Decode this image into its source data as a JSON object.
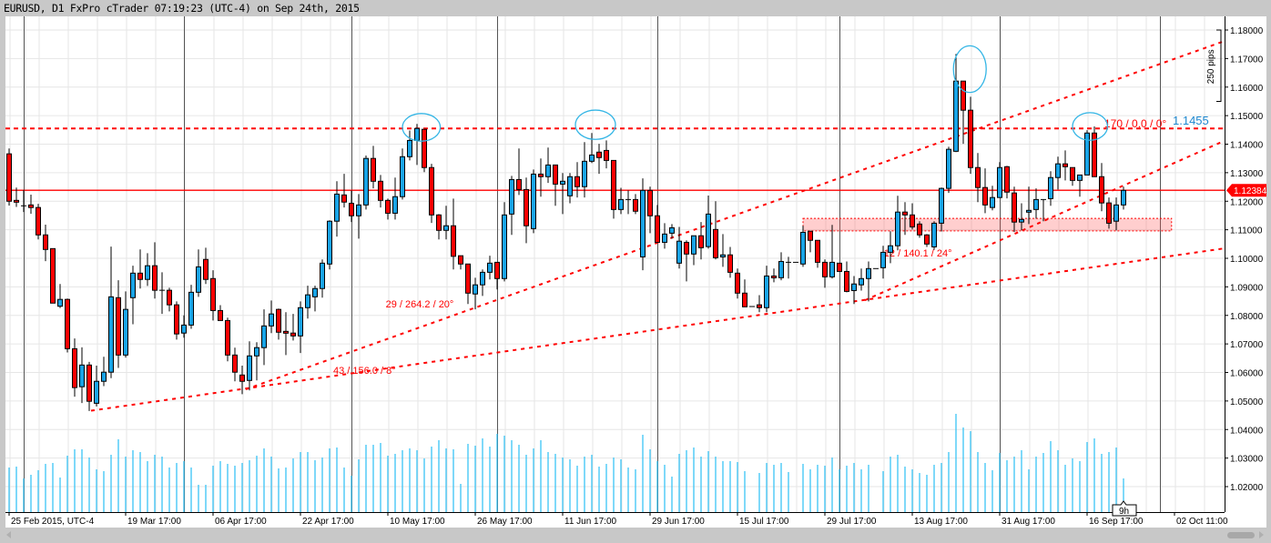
{
  "window": {
    "title": "EURUSD, D1 FxPro cTrader 07:19:23 (UTC-4) on Sep 24th, 2015"
  },
  "colors": {
    "bull": "#19a4e6",
    "bear": "#ff0000",
    "volume": "#29bff5",
    "line": "#ff0000",
    "highlight": "#33b5e5",
    "grid": "#e6e6e6",
    "separator": "#555555"
  },
  "chart_data": {
    "type": "candlestick",
    "symbol": "EURUSD",
    "timeframe": "D1",
    "ylim": [
      1.0115,
      1.1845
    ],
    "y_ticks": [
      1.18,
      1.17,
      1.16,
      1.15,
      1.14,
      1.13,
      1.12,
      1.11,
      1.1,
      1.09,
      1.08,
      1.07,
      1.06,
      1.05,
      1.04,
      1.03,
      1.02
    ],
    "y_tick_labels": [
      "1.18000",
      "1.17000",
      "1.16000",
      "1.15000",
      "1.14000",
      "1.13000",
      "1.12000",
      "1.11000",
      "1.10000",
      "1.09000",
      "1.08000",
      "1.07000",
      "1.06000",
      "1.05000",
      "1.04000",
      "1.03000",
      "1.02000"
    ],
    "x_labels": [
      {
        "label": "25 Feb 2015, UTC-4",
        "index": 0
      },
      {
        "label": "19 Mar 17:00",
        "index": 16
      },
      {
        "label": "06 Apr 17:00",
        "index": 28
      },
      {
        "label": "22 Apr 17:00",
        "index": 40
      },
      {
        "label": "10 May 17:00",
        "index": 52
      },
      {
        "label": "26 May 17:00",
        "index": 64
      },
      {
        "label": "11 Jun 17:00",
        "index": 76
      },
      {
        "label": "29 Jun 17:00",
        "index": 88
      },
      {
        "label": "15 Jul 17:00",
        "index": 100
      },
      {
        "label": "29 Jul 17:00",
        "index": 112
      },
      {
        "label": "13 Aug 17:00",
        "index": 124
      },
      {
        "label": "31 Aug 17:00",
        "index": 136
      },
      {
        "label": "16 Sep 17:00",
        "index": 148
      },
      {
        "label": "02 Oct 11:00",
        "index": 160
      }
    ],
    "period_separators": [
      2,
      24,
      47,
      67,
      89,
      114,
      136,
      158
    ],
    "ohlc_columns": [
      "open",
      "high",
      "low",
      "close"
    ],
    "candles": [
      [
        1.1366,
        1.1385,
        1.1185,
        1.12
      ],
      [
        1.1203,
        1.1248,
        1.118,
        1.1197
      ],
      [
        1.1184,
        1.124,
        1.1162,
        1.1184
      ],
      [
        1.1187,
        1.1223,
        1.1156,
        1.1178
      ],
      [
        1.1178,
        1.1191,
        1.1066,
        1.1082
      ],
      [
        1.1082,
        1.1118,
        1.099,
        1.1031
      ],
      [
        1.1034,
        1.1034,
        1.0843,
        1.0843
      ],
      [
        1.0832,
        1.091,
        1.0826,
        1.0856
      ],
      [
        1.0856,
        1.0859,
        1.067,
        1.0683
      ],
      [
        1.0683,
        1.0719,
        1.0515,
        1.0547
      ],
      [
        1.055,
        1.0688,
        1.0493,
        1.0626
      ],
      [
        1.0626,
        1.0637,
        1.0465,
        1.0499
      ],
      [
        1.0492,
        1.0624,
        1.0481,
        1.0569
      ],
      [
        1.0569,
        1.0655,
        1.0552,
        1.0601
      ],
      [
        1.0601,
        1.1041,
        1.058,
        1.0865
      ],
      [
        1.0862,
        1.0923,
        1.0616,
        1.0661
      ],
      [
        1.0661,
        1.0884,
        1.0652,
        1.0821
      ],
      [
        1.0862,
        1.0974,
        1.0769,
        1.0948
      ],
      [
        1.0948,
        1.1031,
        1.0894,
        1.0926
      ],
      [
        1.0926,
        1.1018,
        1.0903,
        1.0974
      ],
      [
        1.0974,
        1.1056,
        1.0859,
        1.0888
      ],
      [
        1.0888,
        1.0951,
        1.0805,
        1.0888
      ],
      [
        1.0888,
        1.0897,
        1.0814,
        1.0837
      ],
      [
        1.0837,
        1.0849,
        1.0715,
        1.0735
      ],
      [
        1.0738,
        1.08,
        1.0722,
        1.0766
      ],
      [
        1.0766,
        1.0907,
        1.0753,
        1.0881
      ],
      [
        1.0881,
        1.1031,
        1.0865,
        1.097
      ],
      [
        1.0996,
        1.1037,
        1.091,
        1.0926
      ],
      [
        1.0929,
        1.0958,
        1.0782,
        1.0817
      ],
      [
        1.0817,
        1.0836,
        1.0782,
        1.0782
      ],
      [
        1.0782,
        1.0792,
        1.0639,
        1.0661
      ],
      [
        1.0661,
        1.0687,
        1.0569,
        1.0601
      ],
      [
        1.0591,
        1.0624,
        1.0524,
        1.0569
      ],
      [
        1.0572,
        1.0709,
        1.0537,
        1.0658
      ],
      [
        1.0658,
        1.0706,
        1.0572,
        1.0687
      ],
      [
        1.0687,
        1.0821,
        1.0626,
        1.0763
      ],
      [
        1.0763,
        1.0852,
        1.0738,
        1.0805
      ],
      [
        1.0821,
        1.0824,
        1.0715,
        1.0741
      ],
      [
        1.0744,
        1.0811,
        1.0661,
        1.0738
      ],
      [
        1.0738,
        1.0805,
        1.0712,
        1.0728
      ],
      [
        1.0728,
        1.0849,
        1.0668,
        1.0827
      ],
      [
        1.0827,
        1.0904,
        1.0789,
        1.0872
      ],
      [
        1.0865,
        1.0904,
        1.0814,
        1.0894
      ],
      [
        1.0894,
        1.0996,
        1.0862,
        1.0983
      ],
      [
        1.098,
        1.1133,
        1.0961,
        1.113
      ],
      [
        1.113,
        1.127,
        1.1076,
        1.1225
      ],
      [
        1.1222,
        1.1296,
        1.1178,
        1.1197
      ],
      [
        1.1193,
        1.1238,
        1.1127,
        1.1149
      ],
      [
        1.1149,
        1.1225,
        1.1069,
        1.1187
      ],
      [
        1.1187,
        1.136,
        1.1171,
        1.135
      ],
      [
        1.135,
        1.1394,
        1.1245,
        1.127
      ],
      [
        1.127,
        1.1292,
        1.1178,
        1.1203
      ],
      [
        1.1203,
        1.1209,
        1.1136,
        1.1158
      ],
      [
        1.1158,
        1.1283,
        1.1136,
        1.1216
      ],
      [
        1.1216,
        1.1385,
        1.1206,
        1.1356
      ],
      [
        1.1356,
        1.1448,
        1.1343,
        1.1413
      ],
      [
        1.1413,
        1.1471,
        1.1327,
        1.1455
      ],
      [
        1.1452,
        1.1452,
        1.1302,
        1.1318
      ],
      [
        1.1318,
        1.1331,
        1.1124,
        1.1152
      ],
      [
        1.1152,
        1.1155,
        1.1066,
        1.1098
      ],
      [
        1.1098,
        1.1184,
        1.1066,
        1.1114
      ],
      [
        1.1114,
        1.1209,
        1.0961,
        1.1007
      ],
      [
        1.1009,
        1.1009,
        1.0961,
        1.098
      ],
      [
        1.098,
        1.098,
        1.084,
        1.0878
      ],
      [
        1.0875,
        1.0932,
        1.0821,
        1.0907
      ],
      [
        1.0907,
        1.0961,
        1.0868,
        1.0951
      ],
      [
        1.0951,
        1.1009,
        1.0926,
        1.0983
      ],
      [
        1.0986,
        1.0986,
        1.0891,
        1.0929
      ],
      [
        1.0929,
        1.1197,
        1.0919,
        1.1152
      ],
      [
        1.1155,
        1.1289,
        1.1082,
        1.1276
      ],
      [
        1.1276,
        1.1385,
        1.1222,
        1.1241
      ],
      [
        1.1241,
        1.1283,
        1.1053,
        1.1114
      ],
      [
        1.1104,
        1.1311,
        1.1088,
        1.1295
      ],
      [
        1.1295,
        1.135,
        1.1216,
        1.1286
      ],
      [
        1.1286,
        1.1388,
        1.1264,
        1.1327
      ],
      [
        1.1327,
        1.1327,
        1.1184,
        1.126
      ],
      [
        1.126,
        1.1299,
        1.1155,
        1.127
      ],
      [
        1.1219,
        1.1299,
        1.1193,
        1.1286
      ],
      [
        1.1286,
        1.1337,
        1.1213,
        1.1251
      ],
      [
        1.1251,
        1.1407,
        1.1213,
        1.134
      ],
      [
        1.134,
        1.1439,
        1.1334,
        1.1362
      ],
      [
        1.1372,
        1.1401,
        1.1296,
        1.1353
      ],
      [
        1.1378,
        1.1413,
        1.1315,
        1.1343
      ],
      [
        1.1343,
        1.1343,
        1.1139,
        1.1171
      ],
      [
        1.1171,
        1.1247,
        1.1155,
        1.1206
      ],
      [
        1.1206,
        1.1238,
        1.1155,
        1.1206
      ],
      [
        1.1206,
        1.1225,
        1.1155,
        1.1165
      ],
      [
        1.1005,
        1.128,
        1.0958,
        1.1238
      ],
      [
        1.1238,
        1.1251,
        1.1088,
        1.1149
      ],
      [
        1.1149,
        1.1187,
        1.1056,
        1.1056
      ],
      [
        1.1056,
        1.1123,
        1.1034,
        1.1085
      ],
      [
        1.1088,
        1.112,
        1.1069,
        1.1107
      ],
      [
        1.0983,
        1.111,
        1.0964,
        1.106
      ],
      [
        1.1056,
        1.1063,
        1.0919,
        1.1015
      ],
      [
        1.1015,
        1.1079,
        1.0976,
        1.1079
      ],
      [
        1.1079,
        1.1127,
        1.0996,
        1.1037
      ],
      [
        1.1041,
        1.122,
        1.1034,
        1.1155
      ],
      [
        1.1101,
        1.12,
        1.0996,
        1.1002
      ],
      [
        1.1005,
        1.1085,
        1.097,
        1.1012
      ],
      [
        1.1012,
        1.104,
        1.0932,
        1.0951
      ],
      [
        1.0948,
        1.0964,
        1.0859,
        1.0878
      ],
      [
        1.0878,
        1.0926,
        1.083,
        1.083
      ],
      [
        1.0831,
        1.0831,
        1.0831,
        1.0831
      ],
      [
        1.0837,
        1.0871,
        1.0811,
        1.0827
      ],
      [
        1.0827,
        1.0974,
        1.0811,
        1.0938
      ],
      [
        1.0938,
        1.0964,
        1.0916,
        1.0932
      ],
      [
        1.0932,
        1.1021,
        1.0923,
        1.0989
      ],
      [
        1.0986,
        1.1005,
        1.0929,
        1.0986
      ],
      [
        1.0986,
        1.0986,
        1.0986,
        1.0986
      ],
      [
        1.098,
        1.1114,
        1.097,
        1.1091
      ],
      [
        1.1095,
        1.1095,
        1.1021,
        1.1063
      ],
      [
        1.1063,
        1.1063,
        1.0967,
        1.0986
      ],
      [
        1.0986,
        1.0996,
        1.0897,
        1.0935
      ],
      [
        1.0935,
        1.1117,
        1.0929,
        1.0986
      ],
      [
        1.0983,
        1.0983,
        1.0954,
        1.0954
      ],
      [
        1.0954,
        1.0989,
        1.0881,
        1.0884
      ],
      [
        1.0887,
        1.0938,
        1.084,
        1.091
      ],
      [
        1.0907,
        1.0964,
        1.0887,
        1.0929
      ],
      [
        1.0929,
        1.0989,
        1.0849,
        1.0964
      ],
      [
        1.0964,
        1.0964,
        1.0964,
        1.0964
      ],
      [
        1.0967,
        1.1044,
        1.0929,
        1.1021
      ],
      [
        1.1021,
        1.1095,
        1.0983,
        1.1044
      ],
      [
        1.1044,
        1.1219,
        1.1028,
        1.1162
      ],
      [
        1.1162,
        1.1197,
        1.1082,
        1.1152
      ],
      [
        1.1152,
        1.1193,
        1.1101,
        1.111
      ],
      [
        1.112,
        1.113,
        1.1072,
        1.1082
      ],
      [
        1.1082,
        1.1085,
        1.104,
        1.105
      ],
      [
        1.104,
        1.113,
        1.103,
        1.1123
      ],
      [
        1.1123,
        1.1248,
        1.1094,
        1.1245
      ],
      [
        1.1245,
        1.1391,
        1.1229,
        1.1382
      ],
      [
        1.1375,
        1.1716,
        1.1372,
        1.1621
      ],
      [
        1.1621,
        1.1621,
        1.1401,
        1.1519
      ],
      [
        1.1519,
        1.1566,
        1.1296,
        1.1318
      ],
      [
        1.1318,
        1.1369,
        1.1197,
        1.1248
      ],
      [
        1.1248,
        1.1315,
        1.1158,
        1.1187
      ],
      [
        1.1178,
        1.1254,
        1.1168,
        1.1213
      ],
      [
        1.1213,
        1.1337,
        1.1213,
        1.1318
      ],
      [
        1.1321,
        1.1324,
        1.121,
        1.1232
      ],
      [
        1.1229,
        1.1251,
        1.1092,
        1.1127
      ],
      [
        1.1127,
        1.1193,
        1.1098,
        1.1136
      ],
      [
        1.1162,
        1.1251,
        1.112,
        1.1168
      ],
      [
        1.1171,
        1.1245,
        1.1139,
        1.1206
      ],
      [
        1.1206,
        1.1206,
        1.113,
        1.1206
      ],
      [
        1.1209,
        1.1305,
        1.1184,
        1.1283
      ],
      [
        1.1283,
        1.1356,
        1.1241,
        1.1331
      ],
      [
        1.1331,
        1.1378,
        1.1273,
        1.1321
      ],
      [
        1.1318,
        1.1318,
        1.1254,
        1.1273
      ],
      [
        1.1273,
        1.1292,
        1.1216,
        1.1292
      ],
      [
        1.1292,
        1.1449,
        1.1292,
        1.1439
      ],
      [
        1.1439,
        1.1462,
        1.1286,
        1.1286
      ],
      [
        1.1286,
        1.1334,
        1.1165,
        1.1194
      ],
      [
        1.1194,
        1.1213,
        1.1104,
        1.1123
      ],
      [
        1.113,
        1.1213,
        1.1098,
        1.1187
      ],
      [
        1.1187,
        1.1251,
        1.1171,
        1.1238
      ]
    ],
    "volume_relative": [
      49,
      50,
      37,
      41,
      46,
      53,
      54,
      38,
      62,
      69,
      69,
      60,
      47,
      45,
      63,
      80,
      61,
      68,
      66,
      56,
      63,
      61,
      49,
      54,
      56,
      49,
      30,
      30,
      51,
      56,
      53,
      51,
      54,
      57,
      62,
      70,
      61,
      48,
      49,
      59,
      66,
      66,
      57,
      60,
      70,
      71,
      49,
      40,
      58,
      74,
      74,
      76,
      62,
      64,
      68,
      70,
      68,
      59,
      72,
      79,
      70,
      69,
      31,
      75,
      73,
      81,
      72,
      86,
      84,
      79,
      74,
      63,
      70,
      79,
      66,
      64,
      60,
      58,
      51,
      61,
      63,
      50,
      53,
      60,
      58,
      49,
      47,
      85,
      69,
      56,
      52,
      39,
      64,
      68,
      71,
      61,
      67,
      61,
      56,
      56,
      55,
      45,
      0,
      43,
      54,
      52,
      54,
      44,
      0,
      53,
      47,
      52,
      51,
      60,
      47,
      51,
      54,
      47,
      52,
      0,
      45,
      61,
      63,
      50,
      47,
      43,
      41,
      52,
      54,
      66,
      108,
      93,
      89,
      66,
      54,
      46,
      65,
      57,
      61,
      68,
      47,
      61,
      65,
      78,
      68,
      52,
      59,
      56,
      77,
      81,
      64,
      66,
      71,
      37
    ],
    "current_price": {
      "value": 1.12384,
      "label": "1.12384"
    },
    "horizontal_level": {
      "value": 1.1455,
      "label": "1.1455",
      "annotation": "170 / 0.0 / 0°"
    },
    "trendlines": [
      {
        "label": "43 / 156.0 / 8°",
        "start": [
          11.25,
          1.0466
        ],
        "end": [
          166.9,
          1.1035
        ],
        "label_at": [
          44.5,
          1.0595
        ]
      },
      {
        "label": "29 / 264.2 / 20°",
        "start": [
          32.5,
          1.0541
        ],
        "end": [
          166.6,
          1.1759
        ],
        "label_at": [
          51.7,
          1.0828
        ]
      },
      {
        "label": "12 / 140.1 / 24°",
        "start": [
          117.5,
          1.0853
        ],
        "end": [
          166.5,
          1.1408
        ],
        "label_at": [
          120.1,
          1.1007
        ]
      }
    ],
    "zone": {
      "start_index": 109,
      "end_index": 159.6,
      "top": 1.114,
      "bottom": 1.1096
    },
    "highlights": [
      {
        "index": 56.6,
        "price": 1.1459,
        "wx": 2.6,
        "hp": 0.0051
      },
      {
        "index": 80.5,
        "price": 1.1468,
        "wx": 2.75,
        "hp": 0.0054
      },
      {
        "index": 131.9,
        "price": 1.1663,
        "wx": 2.25,
        "hp": 0.0086
      },
      {
        "index": 148.4,
        "price": 1.1462,
        "wx": 2.4,
        "hp": 0.0051
      }
    ],
    "ruler": {
      "label": "250 pips",
      "from": 1.18,
      "to": 1.155
    },
    "countdown": {
      "label": "9h"
    }
  }
}
